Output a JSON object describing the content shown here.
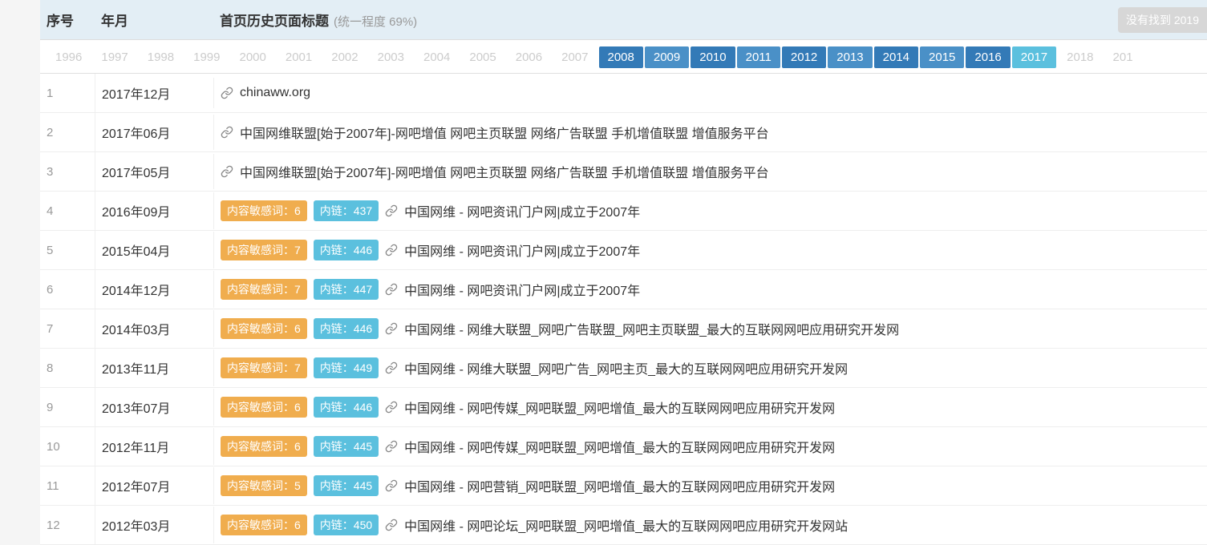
{
  "header": {
    "col_index": "序号",
    "col_date": "年月",
    "col_title": "首页历史页面标题",
    "uniformity": "(统一程度 69%)",
    "notfound": "没有找到 2019"
  },
  "years": [
    {
      "label": "1996",
      "active": false,
      "color": null
    },
    {
      "label": "1997",
      "active": false,
      "color": null
    },
    {
      "label": "1998",
      "active": false,
      "color": null
    },
    {
      "label": "1999",
      "active": false,
      "color": null
    },
    {
      "label": "2000",
      "active": false,
      "color": null
    },
    {
      "label": "2001",
      "active": false,
      "color": null
    },
    {
      "label": "2002",
      "active": false,
      "color": null
    },
    {
      "label": "2003",
      "active": false,
      "color": null
    },
    {
      "label": "2004",
      "active": false,
      "color": null
    },
    {
      "label": "2005",
      "active": false,
      "color": null
    },
    {
      "label": "2006",
      "active": false,
      "color": null
    },
    {
      "label": "2007",
      "active": false,
      "color": null
    },
    {
      "label": "2008",
      "active": true,
      "color": "#337ab7"
    },
    {
      "label": "2009",
      "active": true,
      "color": "#4a90c7"
    },
    {
      "label": "2010",
      "active": true,
      "color": "#337ab7"
    },
    {
      "label": "2011",
      "active": true,
      "color": "#4a90c7"
    },
    {
      "label": "2012",
      "active": true,
      "color": "#337ab7"
    },
    {
      "label": "2013",
      "active": true,
      "color": "#4a90c7"
    },
    {
      "label": "2014",
      "active": true,
      "color": "#337ab7"
    },
    {
      "label": "2015",
      "active": true,
      "color": "#4a90c7"
    },
    {
      "label": "2016",
      "active": true,
      "color": "#337ab7"
    },
    {
      "label": "2017",
      "active": true,
      "color": "#5bc0de",
      "current": true
    },
    {
      "label": "2018",
      "active": false,
      "color": null
    },
    {
      "label": "201",
      "active": false,
      "color": null
    }
  ],
  "badge_labels": {
    "sensitive_prefix": "内容敏感词：",
    "links_prefix": "内链："
  },
  "rows": [
    {
      "index": "1",
      "date": "2017年12月",
      "sensitive": null,
      "links": null,
      "title": "chinaww.org"
    },
    {
      "index": "2",
      "date": "2017年06月",
      "sensitive": null,
      "links": null,
      "title": "中国网维联盟[始于2007年]-网吧增值 网吧主页联盟 网络广告联盟 手机增值联盟 增值服务平台"
    },
    {
      "index": "3",
      "date": "2017年05月",
      "sensitive": null,
      "links": null,
      "title": "中国网维联盟[始于2007年]-网吧增值 网吧主页联盟 网络广告联盟 手机增值联盟 增值服务平台"
    },
    {
      "index": "4",
      "date": "2016年09月",
      "sensitive": "6",
      "links": "437",
      "title": "中国网维 - 网吧资讯门户网|成立于2007年"
    },
    {
      "index": "5",
      "date": "2015年04月",
      "sensitive": "7",
      "links": "446",
      "title": "中国网维 - 网吧资讯门户网|成立于2007年"
    },
    {
      "index": "6",
      "date": "2014年12月",
      "sensitive": "7",
      "links": "447",
      "title": "中国网维 - 网吧资讯门户网|成立于2007年"
    },
    {
      "index": "7",
      "date": "2014年03月",
      "sensitive": "6",
      "links": "446",
      "title": "中国网维 - 网维大联盟_网吧广告联盟_网吧主页联盟_最大的互联网网吧应用研究开发网"
    },
    {
      "index": "8",
      "date": "2013年11月",
      "sensitive": "7",
      "links": "449",
      "title": "中国网维 - 网维大联盟_网吧广告_网吧主页_最大的互联网网吧应用研究开发网"
    },
    {
      "index": "9",
      "date": "2013年07月",
      "sensitive": "6",
      "links": "446",
      "title": "中国网维 - 网吧传媒_网吧联盟_网吧增值_最大的互联网网吧应用研究开发网"
    },
    {
      "index": "10",
      "date": "2012年11月",
      "sensitive": "6",
      "links": "445",
      "title": "中国网维 - 网吧传媒_网吧联盟_网吧增值_最大的互联网网吧应用研究开发网"
    },
    {
      "index": "11",
      "date": "2012年07月",
      "sensitive": "5",
      "links": "445",
      "title": "中国网维 - 网吧营销_网吧联盟_网吧增值_最大的互联网网吧应用研究开发网"
    },
    {
      "index": "12",
      "date": "2012年03月",
      "sensitive": "6",
      "links": "450",
      "title": "中国网维 - 网吧论坛_网吧联盟_网吧增值_最大的互联网网吧应用研究开发网站"
    }
  ]
}
